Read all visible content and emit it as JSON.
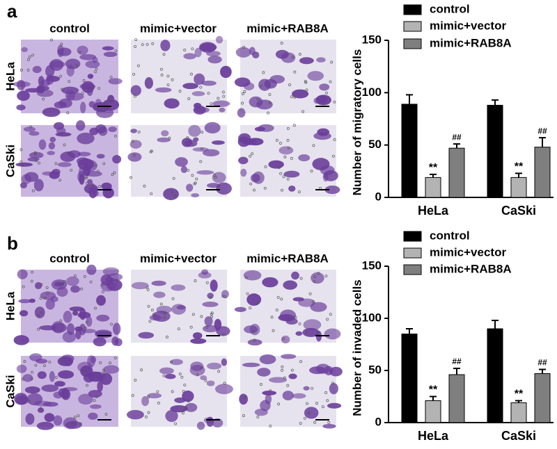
{
  "panels": [
    {
      "label": "a",
      "columns": [
        "control",
        "mimic+vector",
        "mimic+RAB8A"
      ],
      "rows": [
        "HeLa",
        "CaSki"
      ]
    },
    {
      "label": "b",
      "columns": [
        "control",
        "mimic+vector",
        "mimic+RAB8A"
      ],
      "rows": [
        "HeLa",
        "CaSki"
      ]
    }
  ],
  "chart_data": [
    {
      "type": "bar",
      "y_label": "Number of migratory cells",
      "categories": [
        "HeLa",
        "CaSki"
      ],
      "ylim": [
        0,
        150
      ],
      "yticks": [
        0,
        50,
        100,
        150
      ],
      "series": [
        {
          "name": "control",
          "color": "#000000",
          "values": [
            89,
            88
          ],
          "errors": [
            9,
            5
          ]
        },
        {
          "name": "mimic+vector",
          "color": "#b3b3b3",
          "values": [
            19,
            19
          ],
          "errors": [
            3,
            4
          ],
          "marker": "**"
        },
        {
          "name": "mimic+RAB8A",
          "color": "#7f7f7f",
          "values": [
            47,
            48
          ],
          "errors": [
            4,
            9
          ],
          "marker": "##"
        }
      ]
    },
    {
      "type": "bar",
      "y_label": "Number of invaded cells",
      "categories": [
        "HeLa",
        "CaSki"
      ],
      "ylim": [
        0,
        150
      ],
      "yticks": [
        0,
        50,
        100,
        150
      ],
      "series": [
        {
          "name": "control",
          "color": "#000000",
          "values": [
            85,
            90
          ],
          "errors": [
            5,
            8
          ]
        },
        {
          "name": "mimic+vector",
          "color": "#b3b3b3",
          "values": [
            21,
            19
          ],
          "errors": [
            4,
            2
          ],
          "marker": "**"
        },
        {
          "name": "mimic+RAB8A",
          "color": "#7f7f7f",
          "values": [
            46,
            47
          ],
          "errors": [
            6,
            4
          ],
          "marker": "##"
        }
      ]
    }
  ]
}
